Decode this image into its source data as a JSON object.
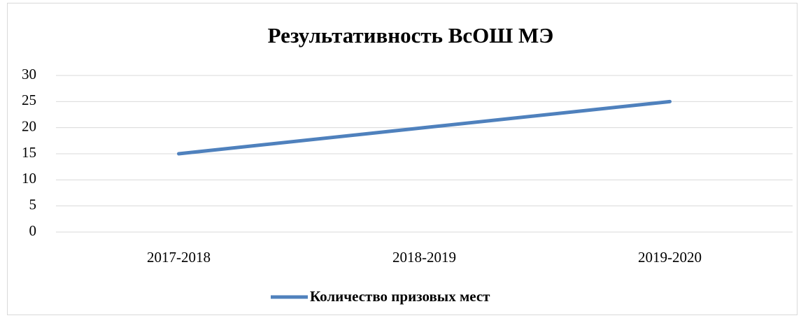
{
  "chart_data": {
    "type": "line",
    "title": "Результативность ВсОШ МЭ",
    "categories": [
      "2017-2018",
      "2018-2019",
      "2019-2020"
    ],
    "series": [
      {
        "name": "Количество призовых мест",
        "color": "#4f81bd",
        "values": [
          15,
          20,
          25
        ]
      }
    ],
    "ylim": [
      0,
      30
    ],
    "yticks": [
      0,
      5,
      10,
      15,
      20,
      25,
      30
    ],
    "grid": true,
    "legend": "bottom"
  }
}
